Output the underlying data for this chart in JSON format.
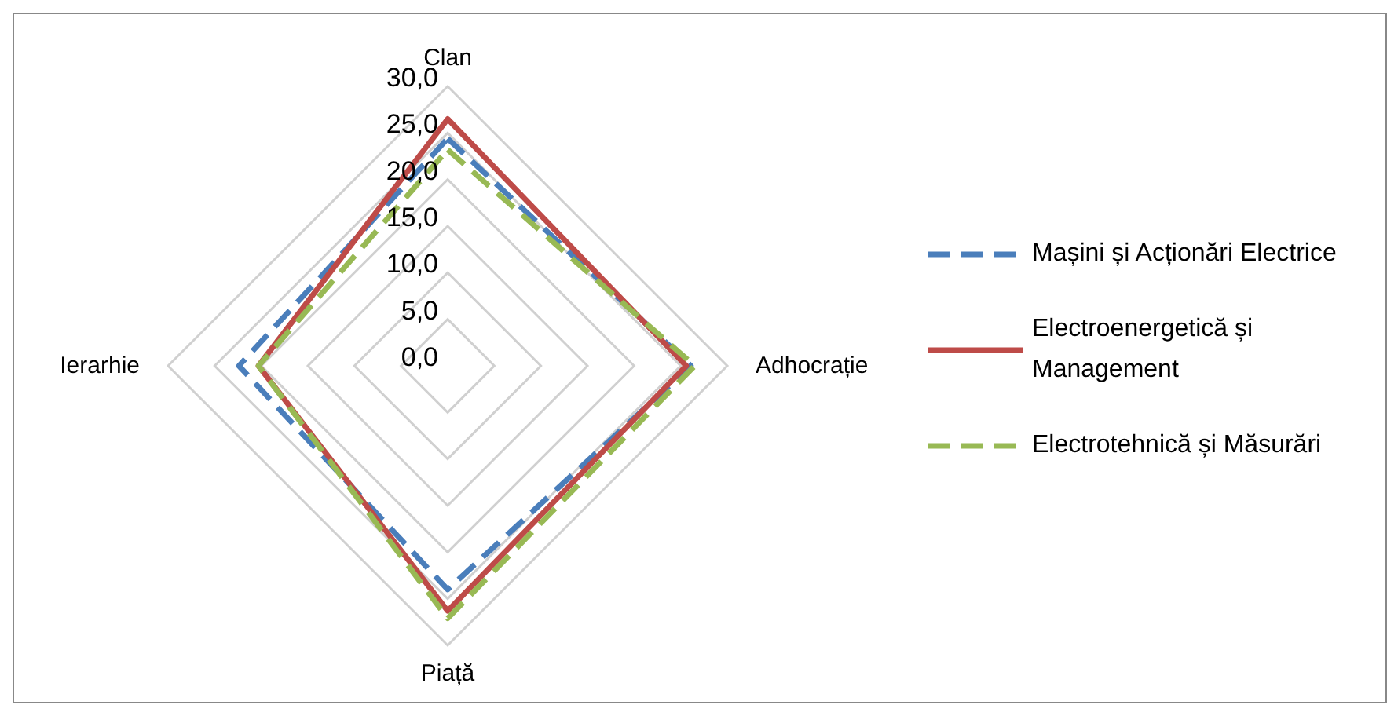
{
  "chart_data": {
    "type": "radar",
    "categories": [
      "Clan",
      "Adhocrație",
      "Piață",
      "Ierarhie"
    ],
    "series": [
      {
        "name": "Mașini și Acționări Electrice",
        "color": "#4a7ebb",
        "line_style": "dashed",
        "values": [
          24.4,
          26.1,
          24.0,
          22.4
        ]
      },
      {
        "name": "Electroenergetică și Management",
        "color": "#be4b48",
        "line_style": "solid",
        "values": [
          26.5,
          25.6,
          26.3,
          20.3
        ]
      },
      {
        "name": "Electrotehnică și Măsurări",
        "color": "#98b954",
        "line_style": "dashed",
        "values": [
          23.2,
          26.5,
          27.1,
          20.3
        ]
      }
    ],
    "ylim": [
      0,
      30
    ],
    "yticks": [
      {
        "value": 0,
        "label": "0,0"
      },
      {
        "value": 5,
        "label": "5,0"
      },
      {
        "value": 10,
        "label": "10,0"
      },
      {
        "value": 15,
        "label": "15,0"
      },
      {
        "value": 20,
        "label": "20,0"
      },
      {
        "value": 25,
        "label": "25,0"
      },
      {
        "value": 30,
        "label": "30,0"
      }
    ],
    "grid": true,
    "legend": "right"
  }
}
